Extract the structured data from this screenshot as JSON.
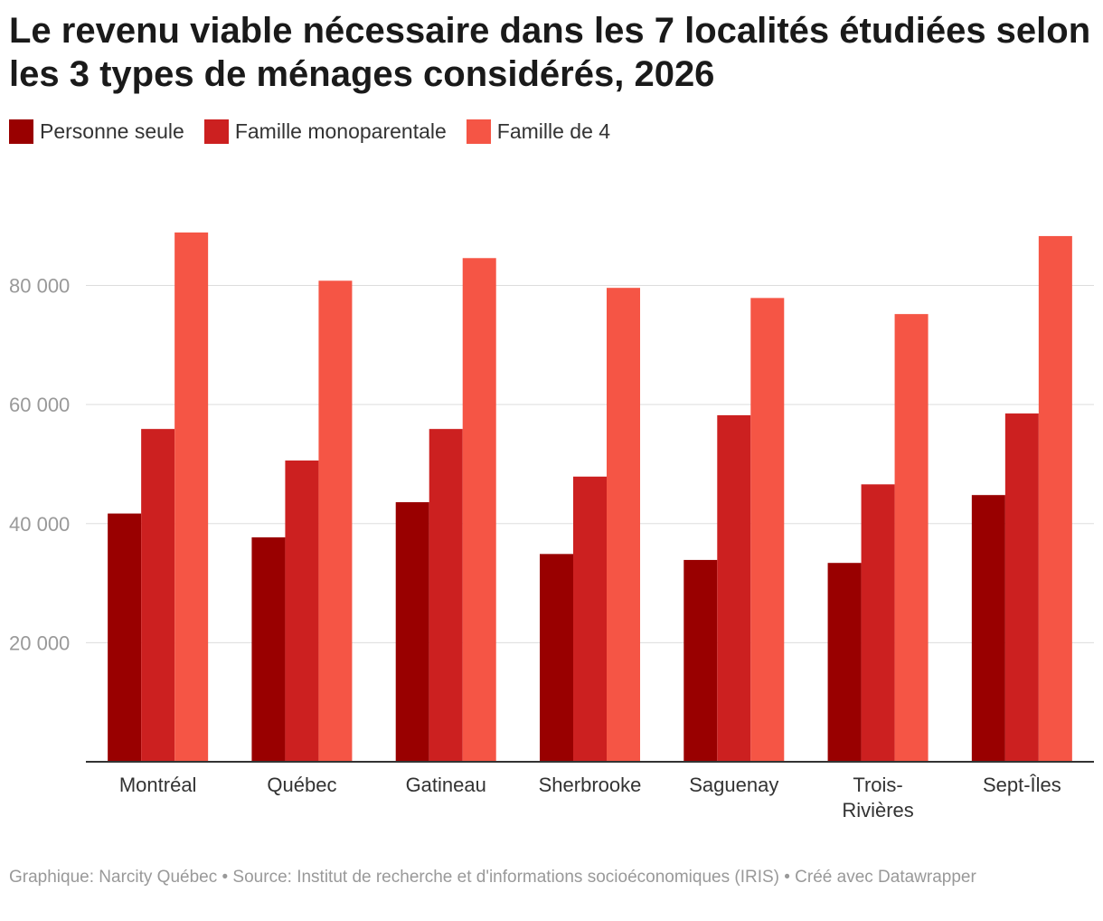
{
  "chart_data": {
    "type": "bar",
    "title": "Le revenu viable nécessaire dans les 7 localités étudiées selon les 3 types de ménages considérés, 2026",
    "categories": [
      "Montréal",
      "Québec",
      "Gatineau",
      "Sherbrooke",
      "Saguenay",
      "Trois-Rivières",
      "Sept-Îles"
    ],
    "category_lines": [
      [
        "Montréal"
      ],
      [
        "Québec"
      ],
      [
        "Gatineau"
      ],
      [
        "Sherbrooke"
      ],
      [
        "Saguenay"
      ],
      [
        "Trois-",
        "Rivières"
      ],
      [
        "Sept-Îles"
      ]
    ],
    "series": [
      {
        "name": "Personne seule",
        "color": "#990000",
        "values": [
          41700,
          37700,
          43600,
          34900,
          33900,
          33400,
          44800
        ]
      },
      {
        "name": "Famille monoparentale",
        "color": "#cc2020",
        "values": [
          55900,
          50600,
          55900,
          47900,
          58200,
          46600,
          58500
        ]
      },
      {
        "name": "Famille de 4",
        "color": "#f55545",
        "values": [
          88900,
          80800,
          84600,
          79600,
          77900,
          75200,
          88300
        ]
      }
    ],
    "y_ticks": [
      20000,
      40000,
      60000,
      80000
    ],
    "y_tick_labels": [
      "20 000",
      "40 000",
      "60 000",
      "80 000"
    ],
    "ylim": [
      0,
      93000
    ],
    "xlabel": "",
    "ylabel": "",
    "grid": true,
    "legend": "top-left"
  },
  "footer": {
    "text": "Graphique: Narcity Québec • Source: Institut de recherche et d'informations socioéconomiques (IRIS) • Créé avec Datawrapper"
  }
}
